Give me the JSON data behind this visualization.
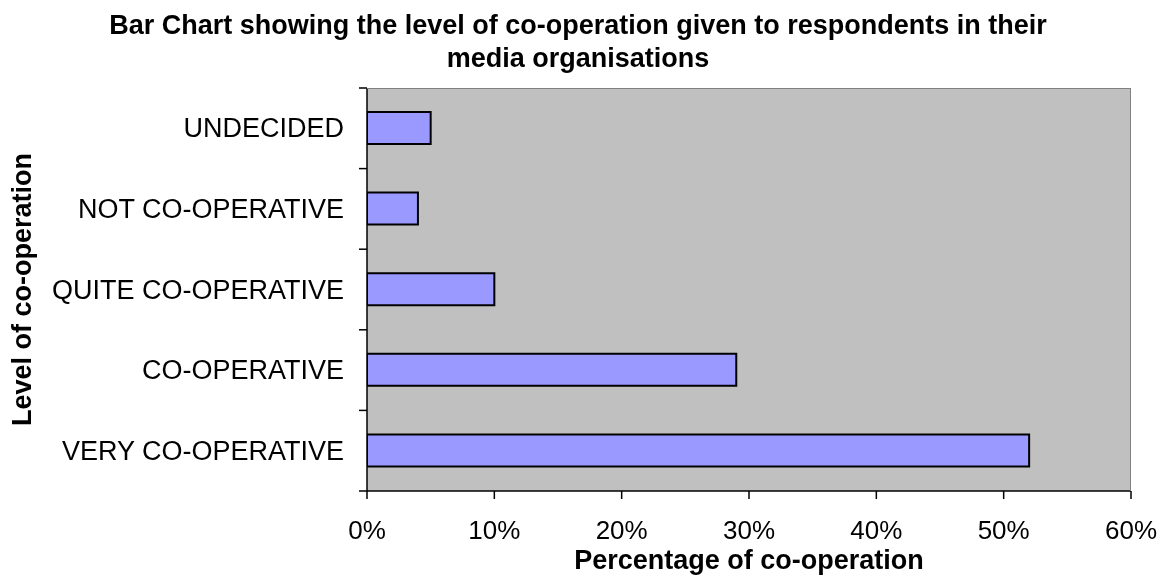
{
  "chart_data": {
    "type": "bar",
    "orientation": "horizontal",
    "title": "Bar Chart showing the level of co-operation given to respondents in their media organisations",
    "xlabel": "Percentage of co-operation",
    "ylabel": "Level of co-operation",
    "categories": [
      "UNDECIDED",
      "NOT CO-OPERATIVE",
      "QUITE CO-OPERATIVE",
      "CO-OPERATIVE",
      "VERY CO-OPERATIVE"
    ],
    "values": [
      5,
      4,
      10,
      29,
      52
    ],
    "color": "#9999ff",
    "xlim": [
      0,
      60
    ],
    "xticks": [
      {
        "value": 0,
        "label": "0%"
      },
      {
        "value": 10,
        "label": "10%"
      },
      {
        "value": 20,
        "label": "20%"
      },
      {
        "value": 30,
        "label": "30%"
      },
      {
        "value": 40,
        "label": "40%"
      },
      {
        "value": 50,
        "label": "50%"
      },
      {
        "value": 60,
        "label": "60%"
      }
    ]
  }
}
